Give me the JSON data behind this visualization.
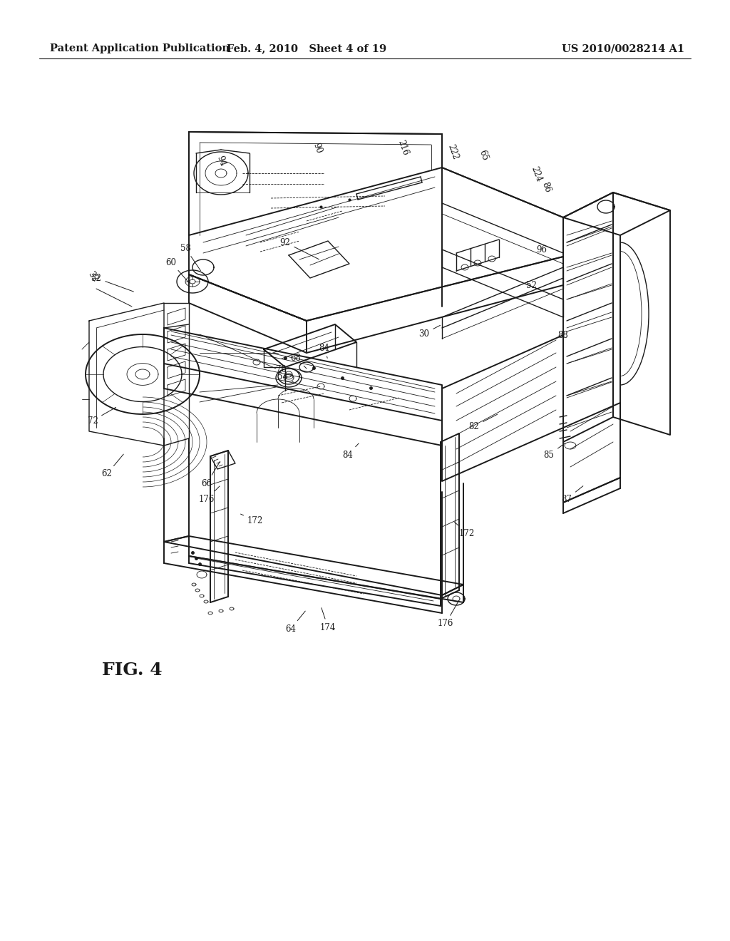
{
  "background_color": "#ffffff",
  "header_left": "Patent Application Publication",
  "header_mid": "Feb. 4, 2010   Sheet 4 of 19",
  "header_right": "US 2010/0028214 A1",
  "fig_label": "FIG. 4",
  "line_color": "#1a1a1a",
  "text_color": "#1a1a1a",
  "ref_fontsize": 8.5,
  "fig_label_fontsize": 18,
  "header_fontsize": 10.5
}
